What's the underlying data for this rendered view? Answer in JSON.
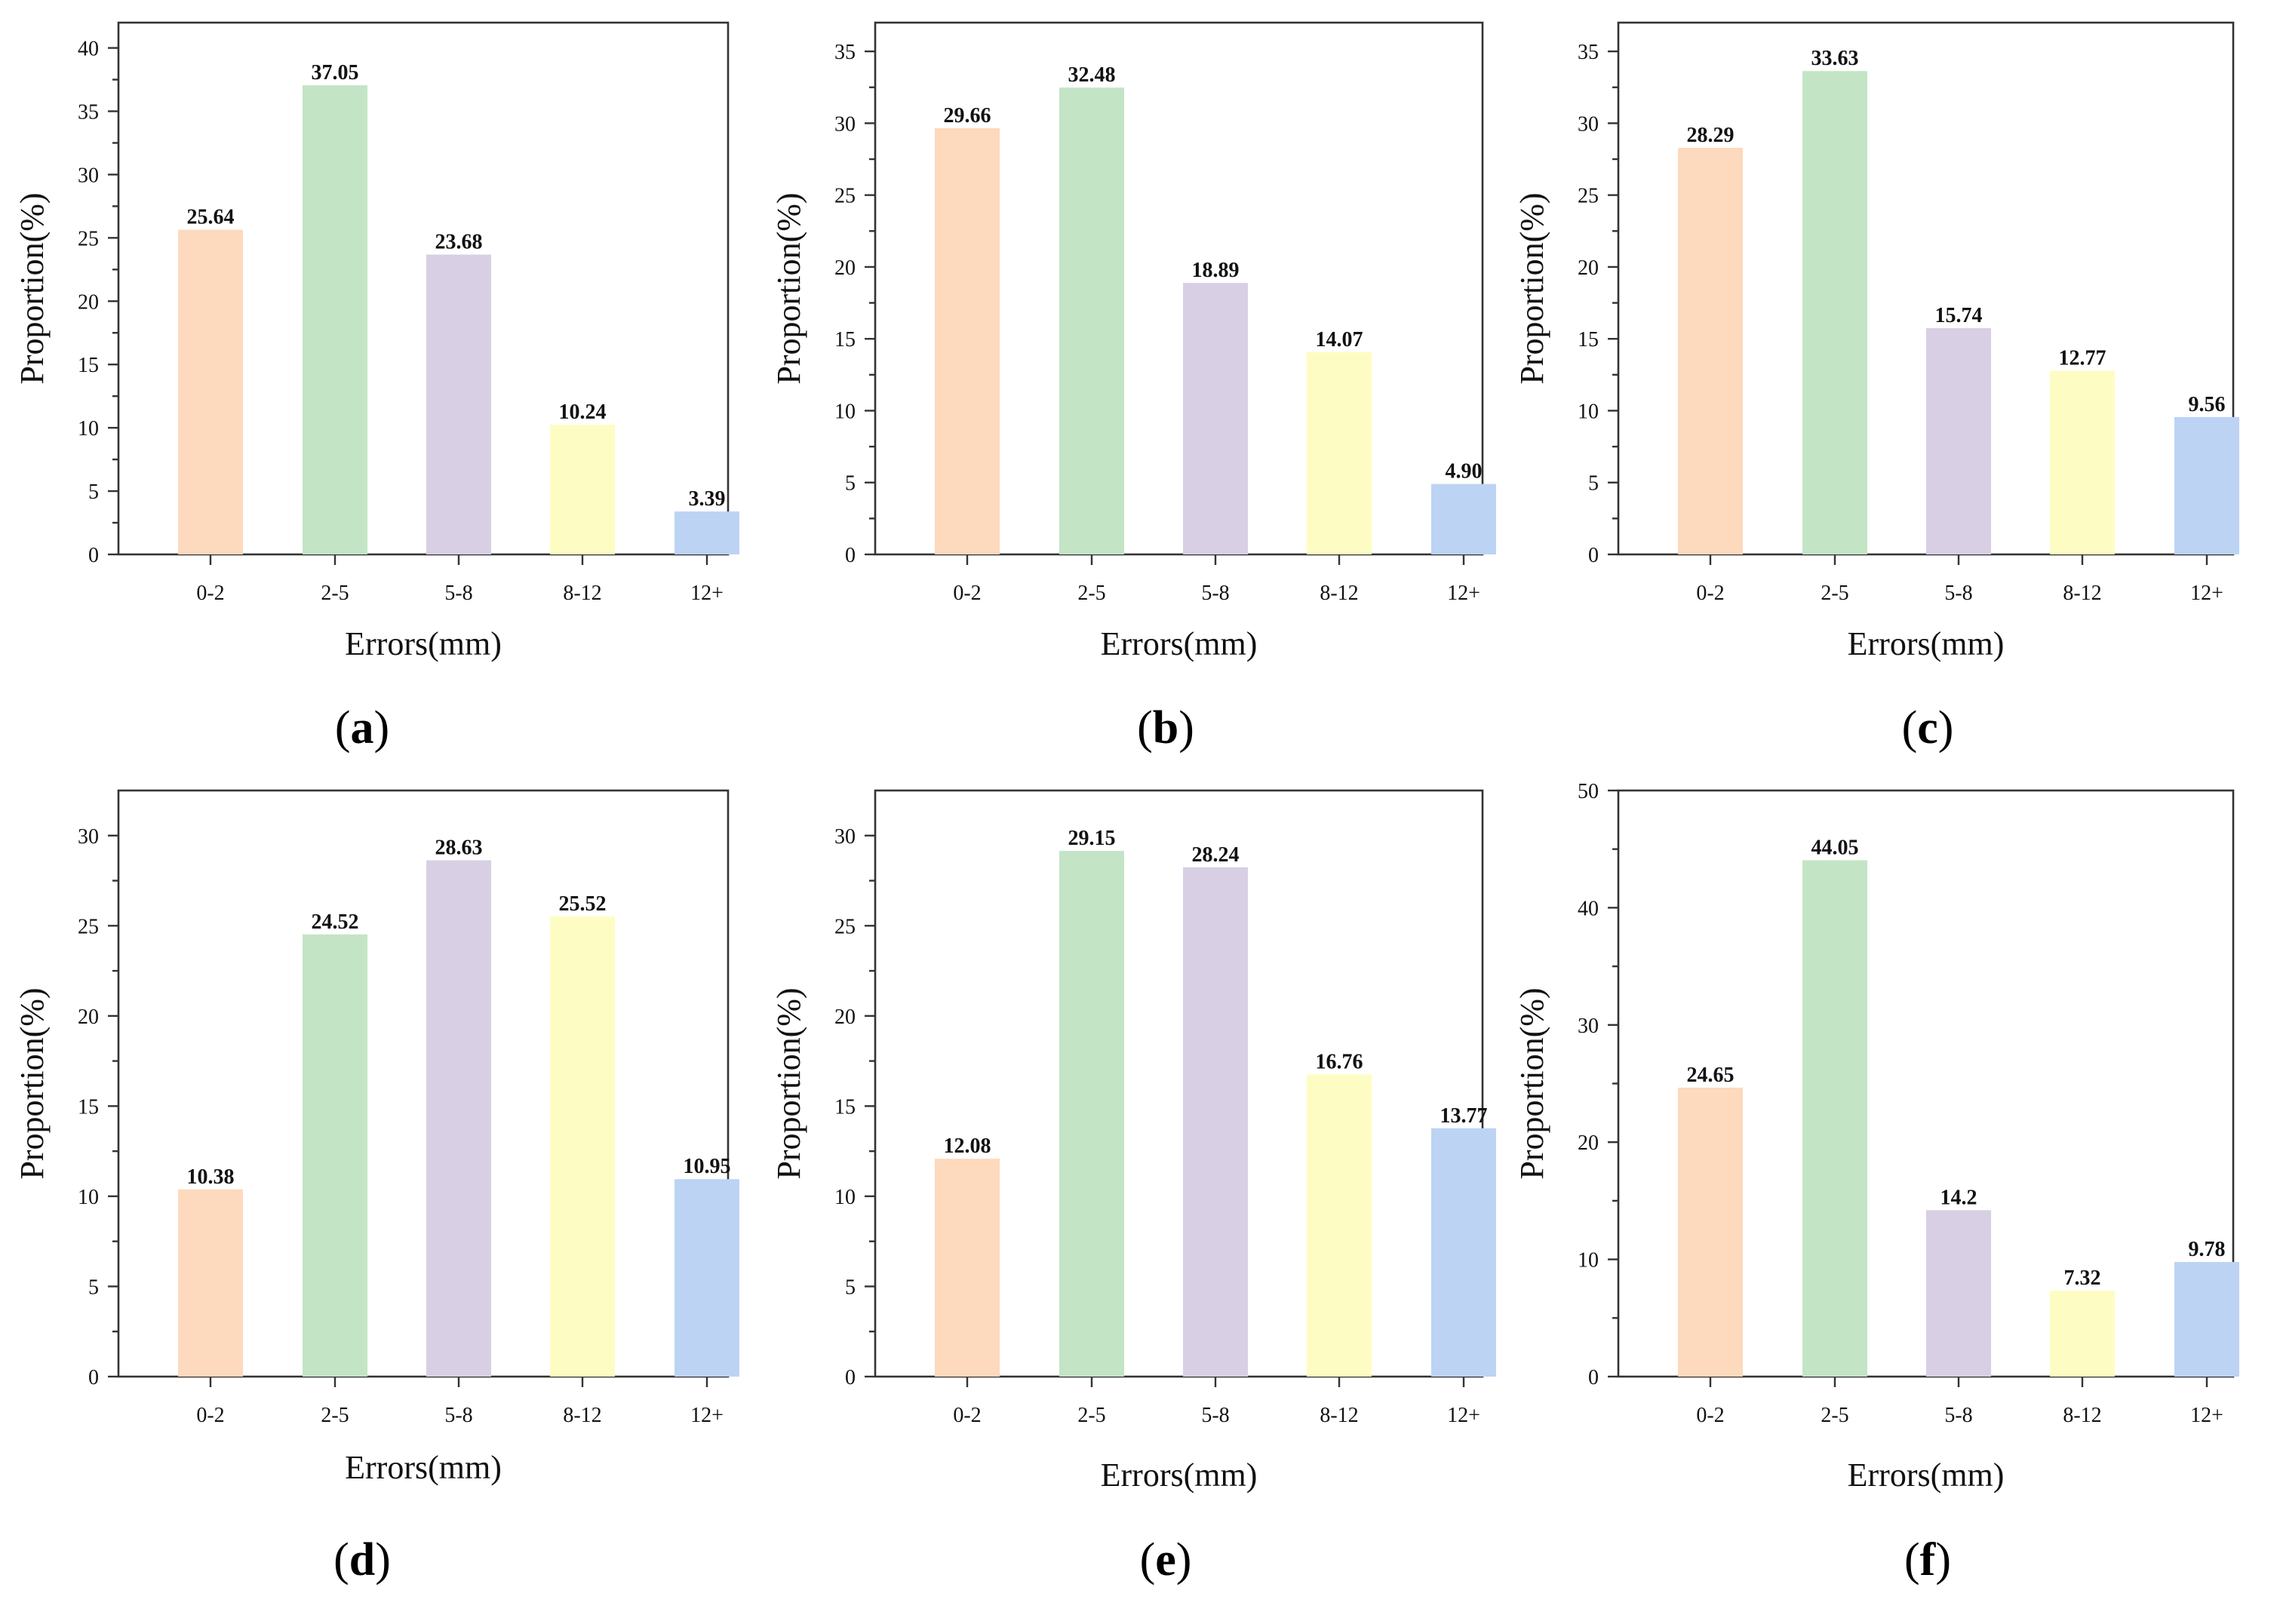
{
  "colors": {
    "0-2": "#fdd9bd",
    "2-5": "#c4e4c6",
    "5-8": "#d8cfe4",
    "8-12": "#fdfdc3",
    "12+": "#bdd3f4",
    "axis": "#333333"
  },
  "chart_data": [
    {
      "panel": "a",
      "type": "bar",
      "categories": [
        "0-2",
        "2-5",
        "5-8",
        "8-12",
        "12+"
      ],
      "values": [
        25.64,
        37.05,
        23.68,
        10.24,
        3.39
      ],
      "value_labels": [
        "25.64",
        "37.05",
        "23.68",
        "10.24",
        "3.39"
      ],
      "xlabel": "Errors(mm)",
      "ylabel": "Proportion(%)",
      "ylim": [
        0,
        42
      ],
      "yticks": [
        0,
        5,
        10,
        15,
        20,
        25,
        30,
        35,
        40
      ],
      "grid": false
    },
    {
      "panel": "b",
      "type": "bar",
      "categories": [
        "0-2",
        "2-5",
        "5-8",
        "8-12",
        "12+"
      ],
      "values": [
        29.66,
        32.48,
        18.89,
        14.07,
        4.9
      ],
      "value_labels": [
        "29.66",
        "32.48",
        "18.89",
        "14.07",
        "4.90"
      ],
      "xlabel": "Errors(mm)",
      "ylabel": "Proportion(%)",
      "ylim": [
        0,
        37
      ],
      "yticks": [
        0,
        5,
        10,
        15,
        20,
        25,
        30,
        35
      ],
      "grid": false
    },
    {
      "panel": "c",
      "type": "bar",
      "categories": [
        "0-2",
        "2-5",
        "5-8",
        "8-12",
        "12+"
      ],
      "values": [
        28.29,
        33.63,
        15.74,
        12.77,
        9.56
      ],
      "value_labels": [
        "28.29",
        "33.63",
        "15.74",
        "12.77",
        "9.56"
      ],
      "xlabel": "Errors(mm)",
      "ylabel": "Proportion(%)",
      "ylim": [
        0,
        37
      ],
      "yticks": [
        0,
        5,
        10,
        15,
        20,
        25,
        30,
        35
      ],
      "grid": false
    },
    {
      "panel": "d",
      "type": "bar",
      "categories": [
        "0-2",
        "2-5",
        "5-8",
        "8-12",
        "12+"
      ],
      "values": [
        10.38,
        24.52,
        28.63,
        25.52,
        10.95
      ],
      "value_labels": [
        "10.38",
        "24.52",
        "28.63",
        "25.52",
        "10.95"
      ],
      "xlabel": "Errors(mm)",
      "ylabel": "Proportion(%)",
      "ylim": [
        0,
        32.5
      ],
      "yticks": [
        0,
        5,
        10,
        15,
        20,
        25,
        30
      ],
      "grid": false
    },
    {
      "panel": "e",
      "type": "bar",
      "categories": [
        "0-2",
        "2-5",
        "5-8",
        "8-12",
        "12+"
      ],
      "values": [
        12.08,
        29.15,
        28.24,
        16.76,
        13.77
      ],
      "value_labels": [
        "12.08",
        "29.15",
        "28.24",
        "16.76",
        "13.77"
      ],
      "xlabel": "Errors(mm)",
      "ylabel": "Proportion(%)",
      "ylim": [
        0,
        32.5
      ],
      "yticks": [
        0,
        5,
        10,
        15,
        20,
        25,
        30
      ],
      "grid": false
    },
    {
      "panel": "f",
      "type": "bar",
      "categories": [
        "0-2",
        "2-5",
        "5-8",
        "8-12",
        "12+"
      ],
      "values": [
        24.65,
        44.05,
        14.2,
        7.32,
        9.78
      ],
      "value_labels": [
        "24.65",
        "44.05",
        "14.2",
        "7.32",
        "9.78"
      ],
      "xlabel": "Errors(mm)",
      "ylabel": "Proportion(%)",
      "ylim": [
        0,
        50
      ],
      "yticks": [
        0,
        10,
        20,
        30,
        40,
        50
      ],
      "grid": false
    }
  ],
  "captions": [
    {
      "open": "(",
      "letter": "a",
      "close": ")"
    },
    {
      "open": "(",
      "letter": "b",
      "close": ")"
    },
    {
      "open": "(",
      "letter": "c",
      "close": ")"
    },
    {
      "open": "(",
      "letter": "d",
      "close": ")"
    },
    {
      "open": "(",
      "letter": "e",
      "close": ")"
    },
    {
      "open": "(",
      "letter": "f",
      "close": ")"
    }
  ]
}
